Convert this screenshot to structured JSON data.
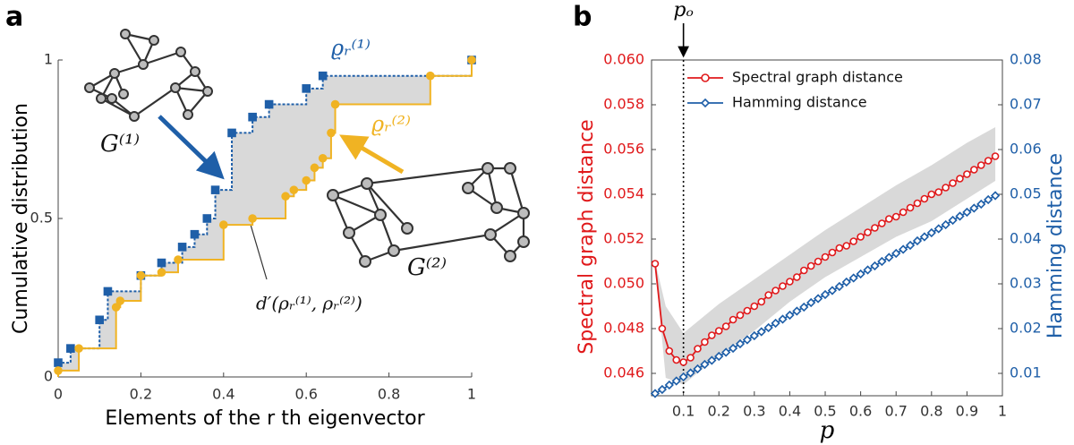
{
  "chart_data": [
    {
      "type": "step",
      "panel_label": "a",
      "xlabel": "Elements of the r th eigenvector",
      "ylabel": "Cumulative distribution",
      "xlim": [
        0,
        1
      ],
      "ylim": [
        0,
        1
      ],
      "xticks": [
        0,
        0.2,
        0.4,
        0.6,
        0.8,
        1
      ],
      "yticks": [
        0,
        0.5,
        1
      ],
      "fill_between": true,
      "fill_color": "#d9d9d9",
      "series": [
        {
          "name": "ϱᵣ⁽¹⁾",
          "color": "#1f5fa8",
          "marker": "square",
          "x": [
            0,
            0.03,
            0.1,
            0.12,
            0.2,
            0.25,
            0.3,
            0.33,
            0.36,
            0.38,
            0.42,
            0.47,
            0.51,
            0.6,
            0.64,
            1
          ],
          "values": [
            0.045,
            0.09,
            0.18,
            0.27,
            0.32,
            0.36,
            0.41,
            0.45,
            0.5,
            0.59,
            0.77,
            0.82,
            0.86,
            0.91,
            0.95,
            1
          ]
        },
        {
          "name": "ϱᵣ⁽²⁾",
          "color": "#f0b323",
          "marker": "circle",
          "x": [
            0,
            0.05,
            0.14,
            0.15,
            0.2,
            0.25,
            0.29,
            0.4,
            0.47,
            0.55,
            0.57,
            0.6,
            0.62,
            0.64,
            0.66,
            0.67,
            0.9,
            1
          ],
          "values": [
            0.02,
            0.09,
            0.22,
            0.24,
            0.32,
            0.33,
            0.37,
            0.48,
            0.5,
            0.57,
            0.59,
            0.62,
            0.66,
            0.69,
            0.77,
            0.86,
            0.95,
            1
          ]
        }
      ],
      "annotations": [
        "G⁽¹⁾",
        "G⁽²⁾",
        "d′(ρᵣ⁽¹⁾, ρᵣ⁽²⁾)"
      ]
    },
    {
      "type": "line",
      "panel_label": "b",
      "xlabel": "p",
      "ylabel": "Spectral graph distance",
      "y2label": "Hamming distance",
      "xlim": [
        0.01,
        1
      ],
      "ylim": [
        0.045,
        0.06
      ],
      "y2lim": [
        0.005,
        0.08
      ],
      "xticks": [
        0.1,
        0.2,
        0.3,
        0.4,
        0.5,
        0.6,
        0.7,
        0.8,
        0.9,
        1
      ],
      "yticks": [
        0.046,
        0.048,
        {
          "value": 0.05,
          "label": "0.050"
        },
        0.052,
        0.054,
        0.056,
        0.058,
        {
          "value": 0.06,
          "label": "0.060"
        }
      ],
      "y2ticks": [
        0.01,
        0.02,
        0.03,
        0.04,
        0.05,
        0.06,
        0.07,
        0.08
      ],
      "legend": "upper left",
      "x": [
        0.02,
        0.04,
        0.06,
        0.08,
        0.1,
        0.12,
        0.14,
        0.16,
        0.18,
        0.2,
        0.22,
        0.24,
        0.26,
        0.28,
        0.3,
        0.32,
        0.34,
        0.36,
        0.38,
        0.4,
        0.42,
        0.44,
        0.46,
        0.48,
        0.5,
        0.52,
        0.54,
        0.56,
        0.58,
        0.6,
        0.62,
        0.64,
        0.66,
        0.68,
        0.7,
        0.72,
        0.74,
        0.76,
        0.78,
        0.8,
        0.82,
        0.84,
        0.86,
        0.88,
        0.9,
        0.92,
        0.94,
        0.96,
        0.98
      ],
      "series": [
        {
          "name": "Spectral graph distance",
          "color": "#e0191b",
          "marker": "circle",
          "axis": "y",
          "values": [
            0.0509,
            0.048,
            0.047,
            0.0466,
            0.0465,
            0.0467,
            0.0471,
            0.0474,
            0.0477,
            0.0479,
            0.0481,
            0.0484,
            0.0486,
            0.0488,
            0.049,
            0.0492,
            0.0495,
            0.0497,
            0.0499,
            0.0501,
            0.0503,
            0.0506,
            0.0508,
            0.051,
            0.0512,
            0.0514,
            0.0516,
            0.0517,
            0.0519,
            0.0521,
            0.0523,
            0.0525,
            0.0527,
            0.0529,
            0.053,
            0.0532,
            0.0534,
            0.0536,
            0.0538,
            0.054,
            0.0541,
            0.0543,
            0.0545,
            0.0547,
            0.0549,
            0.0551,
            0.0553,
            0.0555,
            0.0557
          ]
        },
        {
          "name": "Hamming distance",
          "color": "#1f5fa8",
          "marker": "diamond",
          "axis": "y2",
          "values": [
            0.0055,
            0.0064,
            0.0074,
            0.0083,
            0.0092,
            0.0101,
            0.011,
            0.012,
            0.0129,
            0.0138,
            0.0147,
            0.0156,
            0.0166,
            0.0175,
            0.0184,
            0.0193,
            0.0202,
            0.0212,
            0.0221,
            0.023,
            0.0239,
            0.0248,
            0.0258,
            0.0267,
            0.0276,
            0.0285,
            0.0294,
            0.0304,
            0.0313,
            0.0322,
            0.0331,
            0.034,
            0.035,
            0.0359,
            0.0368,
            0.0377,
            0.0386,
            0.0396,
            0.0405,
            0.0414,
            0.0423,
            0.0432,
            0.0442,
            0.0451,
            0.046,
            0.0469,
            0.0478,
            0.0488,
            0.0497
          ]
        }
      ],
      "band": {
        "color": "#d9d9d9",
        "x": [
          0.02,
          0.05,
          0.1,
          0.2,
          0.3,
          0.4,
          0.5,
          0.6,
          0.7,
          0.8,
          0.9,
          0.98
        ],
        "lower": [
          0.0508,
          0.0458,
          0.0455,
          0.0468,
          0.0479,
          0.0492,
          0.0503,
          0.0512,
          0.0521,
          0.0528,
          0.0538,
          0.0546
        ],
        "upper": [
          0.051,
          0.049,
          0.0478,
          0.0491,
          0.0502,
          0.0513,
          0.0524,
          0.0534,
          0.0544,
          0.0553,
          0.0563,
          0.057
        ]
      },
      "vline": {
        "x": 0.1,
        "label": "pₒ"
      }
    }
  ]
}
